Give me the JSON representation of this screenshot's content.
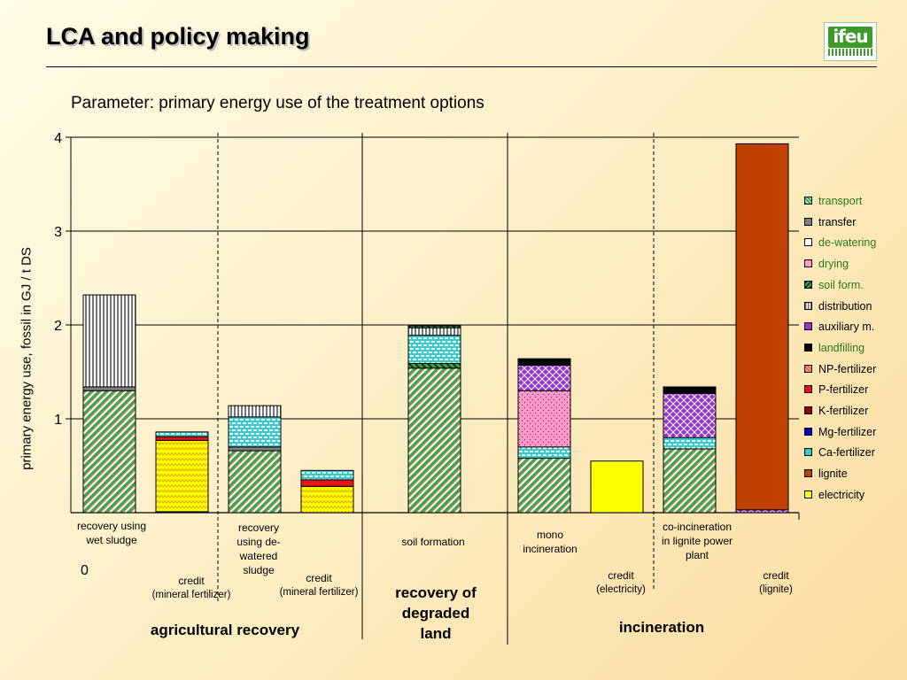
{
  "slide": {
    "title": "LCA and policy making",
    "logo_text": "ifeu",
    "subtitle": "Parameter: primary energy use of the treatment options"
  },
  "colors": {
    "transport": "#3ca84a",
    "transfer": "#808080",
    "de-watering": "#ffffff",
    "drying": "#ff99cc",
    "soil form.": "#1e6e1e",
    "distribution": "#c0c0c0",
    "auxiliary m.": "#9933cc",
    "landfilling": "#000000",
    "NP-fertilizer": "#e8604a",
    "P-fertilizer": "#ee1111",
    "K-fertilizer": "#990000",
    "Mg-fertilizer": "#0000cc",
    "Ca-fertilizer": "#33cccc",
    "lignite": "#c04000",
    "electricity": "#ffff00"
  },
  "chart_data": {
    "type": "bar",
    "stacked": true,
    "title": "Parameter: primary energy use of the treatment options",
    "ylabel": "primary energy use, fossil in GJ / t DS",
    "ylim": [
      0,
      4
    ],
    "yticks": [
      "1",
      "2",
      "3",
      "4"
    ],
    "zero_label": "0",
    "categories": [
      {
        "label": "recovery using wet sludge",
        "lines": [
          "recovery using",
          "wet sludge"
        ],
        "credit": false,
        "segments": [
          {
            "component": "transport",
            "value": 1.3
          },
          {
            "component": "transfer",
            "value": 0.04
          },
          {
            "component": "distribution",
            "value": 0.98
          }
        ]
      },
      {
        "label": "credit (mineral fertilizer)",
        "lines": [
          "credit",
          "(mineral fertilizer)"
        ],
        "credit": true,
        "segments": [
          {
            "component": "Mg-fertilizer",
            "value": 0.01
          },
          {
            "component": "electricity",
            "value": 0.76
          },
          {
            "component": "P-fertilizer",
            "value": 0.04
          },
          {
            "component": "Ca-fertilizer",
            "value": 0.05
          }
        ]
      },
      {
        "label": "recovery using de-watered sludge",
        "lines": [
          "recovery",
          "using de-",
          "watered",
          "sludge"
        ],
        "credit": false,
        "segments": [
          {
            "component": "transport",
            "value": 0.66
          },
          {
            "component": "transfer",
            "value": 0.04
          },
          {
            "component": "Ca-fertilizer",
            "value": 0.32
          },
          {
            "component": "distribution",
            "value": 0.12
          }
        ]
      },
      {
        "label": "credit (mineral fertilizer)",
        "lines": [
          "credit",
          "(mineral fertilizer)"
        ],
        "credit": true,
        "segments": [
          {
            "component": "electricity",
            "value": 0.28
          },
          {
            "component": "P-fertilizer",
            "value": 0.07
          },
          {
            "component": "Ca-fertilizer",
            "value": 0.1
          }
        ]
      },
      {
        "label": "soil formation",
        "lines": [
          "soil formation"
        ],
        "credit": false,
        "segments": [
          {
            "component": "transport",
            "value": 1.54
          },
          {
            "component": "soil form.",
            "value": 0.05
          },
          {
            "component": "Ca-fertilizer",
            "value": 0.3
          },
          {
            "component": "distribution",
            "value": 0.08
          },
          {
            "component": "soil form.",
            "value": 0.02
          }
        ]
      },
      {
        "label": "mono incineration",
        "lines": [
          "mono",
          "incineration"
        ],
        "credit": false,
        "segments": [
          {
            "component": "transport",
            "value": 0.58
          },
          {
            "component": "Ca-fertilizer",
            "value": 0.12
          },
          {
            "component": "drying",
            "value": 0.6
          },
          {
            "component": "auxiliary m.",
            "value": 0.27
          },
          {
            "component": "landfilling",
            "value": 0.07
          }
        ]
      },
      {
        "label": "credit (electricity)",
        "lines": [
          "credit",
          "(electricity)"
        ],
        "credit": true,
        "segments": [
          {
            "component": "electricity",
            "value": 0.55
          }
        ]
      },
      {
        "label": "co-incineration in lignite power plant",
        "lines": [
          "co-incineration",
          "in lignite power",
          "plant"
        ],
        "credit": false,
        "segments": [
          {
            "component": "transport",
            "value": 0.68
          },
          {
            "component": "Ca-fertilizer",
            "value": 0.12
          },
          {
            "component": "auxiliary m.",
            "value": 0.47
          },
          {
            "component": "landfilling",
            "value": 0.07
          }
        ]
      },
      {
        "label": "credit (lignite)",
        "lines": [
          "credit",
          "(lignite)"
        ],
        "credit": true,
        "segments": [
          {
            "component": "auxiliary m.",
            "value": 0.03
          },
          {
            "component": "lignite",
            "value": 3.9
          }
        ]
      }
    ],
    "groups": [
      {
        "lines": [
          "agricultural recovery"
        ]
      },
      {
        "lines": [
          "recovery of",
          "degraded",
          "land"
        ]
      },
      {
        "lines": [
          "incineration"
        ]
      }
    ],
    "legend": {
      "placement": "right",
      "entries": [
        "transport",
        "transfer",
        "de-watering",
        "drying",
        "soil form.",
        "distribution",
        "auxiliary m.",
        "landfilling",
        "NP-fertilizer",
        "P-fertilizer",
        "K-fertilizer",
        "Mg-fertilizer",
        "Ca-fertilizer",
        "lignite",
        "electricity"
      ]
    }
  }
}
